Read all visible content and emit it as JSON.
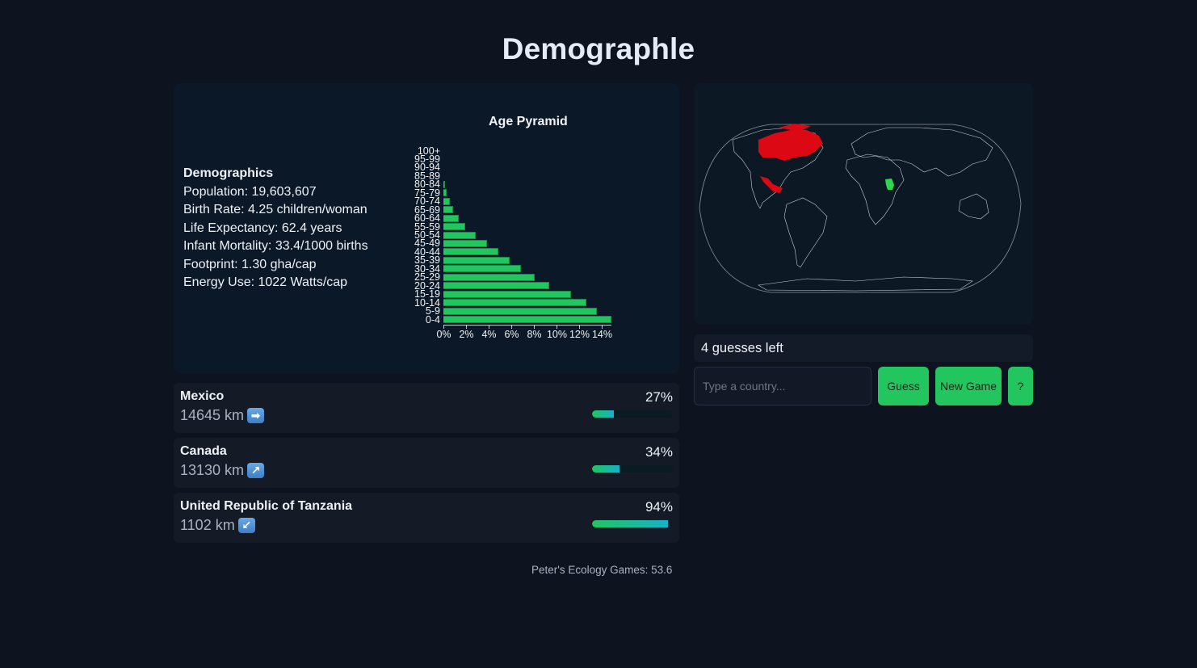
{
  "header": {
    "title": "Demographle"
  },
  "demographics": {
    "heading": "Demographics",
    "population": "Population: 19,603,607",
    "birth_rate": "Birth Rate: 4.25 children/woman",
    "life_expectancy": "Life Expectancy: 62.4 years",
    "infant_mortality": "Infant Mortality: 33.4/1000 births",
    "footprint": "Footprint: 1.30 gha/cap",
    "energy_use": "Energy Use: 1022 Watts/cap"
  },
  "chart_data": {
    "type": "bar",
    "orientation": "horizontal",
    "title": "Age Pyramid",
    "xlabel": "",
    "ylabel": "",
    "xlim": [
      0,
      15
    ],
    "x_ticks": [
      "0%",
      "2%",
      "4%",
      "6%",
      "8%",
      "10%",
      "12%",
      "14%"
    ],
    "categories": [
      "100+",
      "95-99",
      "90-94",
      "85-89",
      "80-84",
      "75-79",
      "70-74",
      "65-69",
      "60-64",
      "55-59",
      "50-54",
      "45-49",
      "40-44",
      "35-39",
      "30-34",
      "25-29",
      "20-24",
      "15-19",
      "10-14",
      "5-9",
      "0-4"
    ],
    "values": [
      0,
      0,
      0,
      0,
      0.15,
      0.3,
      0.55,
      0.85,
      1.35,
      1.95,
      2.85,
      3.85,
      4.85,
      5.85,
      6.85,
      8.05,
      9.35,
      11.3,
      12.65,
      13.6,
      14.85
    ],
    "bar_color": "#22c55e",
    "grid": false
  },
  "map": {
    "highlighted_wrong": [
      "Canada",
      "Mexico"
    ],
    "highlighted_close": [
      "United Republic of Tanzania"
    ],
    "wrong_color": "#dc0814",
    "close_color": "#2dd64f"
  },
  "status": {
    "guesses_left": "4 guesses left"
  },
  "input": {
    "placeholder": "Type a country...",
    "value": ""
  },
  "buttons": {
    "guess": "Guess",
    "new_game": "New Game",
    "help": "?"
  },
  "guesses": [
    {
      "country": "Mexico",
      "distance": "14645 km",
      "direction": "east",
      "arrow": "➡",
      "proximity": "27%",
      "proximity_value": 27
    },
    {
      "country": "Canada",
      "distance": "13130 km",
      "direction": "northeast",
      "arrow": "↗",
      "proximity": "34%",
      "proximity_value": 34
    },
    {
      "country": "United Republic of Tanzania",
      "distance": "1102 km",
      "direction": "southwest",
      "arrow": "↙",
      "proximity": "94%",
      "proximity_value": 94
    }
  ],
  "footer": {
    "text": "Peter's Ecology Games: 53.6"
  },
  "colors": {
    "accent": "#22c55e",
    "background": "#0e1320",
    "panel": "#0b1828"
  }
}
